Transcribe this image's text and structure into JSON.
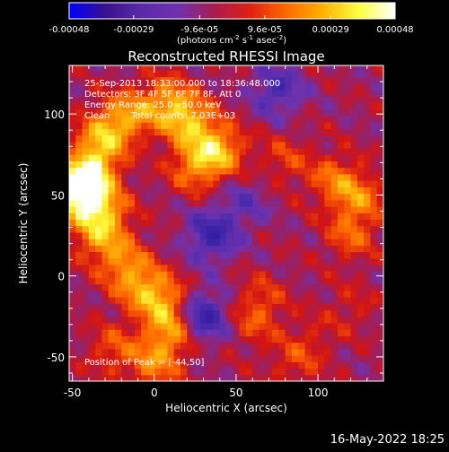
{
  "colorbar": {
    "tick_labels": [
      "-0.00048",
      "-0.00029",
      "-9.6e-05",
      "9.6e-05",
      "0.00029",
      "0.00048"
    ],
    "tick_values": [
      -0.00048,
      -0.00029,
      -9.6e-05,
      9.6e-05,
      0.00029,
      0.00048
    ],
    "range": [
      -0.00048,
      0.00048
    ],
    "unit_main": "(photons cm",
    "unit_exp1": "-2",
    "unit_mid1": " s",
    "unit_exp2": "-1",
    "unit_mid2": " asec",
    "unit_exp3": "-2",
    "unit_close": ")",
    "colors": [
      "#0000ff",
      "#3a1090",
      "#5a2aa8",
      "#7030b0",
      "#a81c50",
      "#e02010",
      "#ff6a00",
      "#ffb000",
      "#ffff40",
      "#ffffff"
    ]
  },
  "annotations": {
    "line1": "25-Sep-2013 18:33:00.000 to 18:36:48.000",
    "line2": "Detectors: 3F 4F 5F 6F 7F 8F, Att 0",
    "line3": "Energy Range: 25.0 - 50.0 keV",
    "line4_left": "Clean",
    "line4_right": "Total counts: 7.03E+03",
    "peak": "Position of Peak = [-44,50]"
  },
  "footer": {
    "timestamp": "16-May-2022 18:25"
  },
  "chart_data": {
    "type": "heatmap",
    "title": "Reconstructed RHESSI Image",
    "xlabel": "Heliocentric X (arcsec)",
    "ylabel": "Heliocentric Y (arcsec)",
    "xlim": [
      -52,
      140
    ],
    "ylim": [
      -65,
      130
    ],
    "x_ticks": [
      -50,
      0,
      50,
      100
    ],
    "y_ticks": [
      -50,
      0,
      50,
      100
    ],
    "x_tick_labels": [
      "-50",
      "0",
      "50",
      "100"
    ],
    "y_tick_labels": [
      "-50",
      "0",
      "50",
      "100"
    ],
    "peak_position": [
      -44,
      50
    ],
    "colormap_range": [
      -0.00048,
      0.00048
    ],
    "features": [
      {
        "x": -45,
        "y": 52,
        "value": 0.00048
      },
      {
        "x": -38,
        "y": 68,
        "value": 0.0003
      },
      {
        "x": -30,
        "y": 88,
        "value": 0.00025
      },
      {
        "x": -15,
        "y": 100,
        "value": 0.00022
      },
      {
        "x": 8,
        "y": 108,
        "value": 0.00024
      },
      {
        "x": 22,
        "y": 95,
        "value": 0.00028
      },
      {
        "x": 40,
        "y": 78,
        "value": 0.00028
      },
      {
        "x": 25,
        "y": 68,
        "value": 0.00022
      },
      {
        "x": -30,
        "y": 40,
        "value": 0.00022
      },
      {
        "x": -35,
        "y": 25,
        "value": 0.0002
      },
      {
        "x": -20,
        "y": 10,
        "value": 0.00018
      },
      {
        "x": -10,
        "y": -5,
        "value": 0.0002
      },
      {
        "x": 5,
        "y": -15,
        "value": 0.00025
      },
      {
        "x": 10,
        "y": -35,
        "value": 0.00024
      },
      {
        "x": 0,
        "y": -55,
        "value": 0.0002
      },
      {
        "x": -25,
        "y": -45,
        "value": 0.00015
      },
      {
        "x": 125,
        "y": 48,
        "value": 0.0002
      },
      {
        "x": 110,
        "y": 60,
        "value": 0.00018
      },
      {
        "x": 120,
        "y": 25,
        "value": 0.00016
      },
      {
        "x": 80,
        "y": 72,
        "value": 0.00012
      },
      {
        "x": 65,
        "y": -15,
        "value": 0.00012
      },
      {
        "x": 60,
        "y": -30,
        "value": 0.0001
      },
      {
        "x": 95,
        "y": -40,
        "value": 8e-05
      },
      {
        "x": 85,
        "y": -55,
        "value": 0.0001
      },
      {
        "x": 120,
        "y": -20,
        "value": 8e-05
      },
      {
        "x": 35,
        "y": 25,
        "value": -0.00025
      },
      {
        "x": 30,
        "y": -25,
        "value": -0.00028
      },
      {
        "x": 75,
        "y": 115,
        "value": -0.0002
      },
      {
        "x": 55,
        "y": 45,
        "value": -0.00012
      }
    ]
  }
}
